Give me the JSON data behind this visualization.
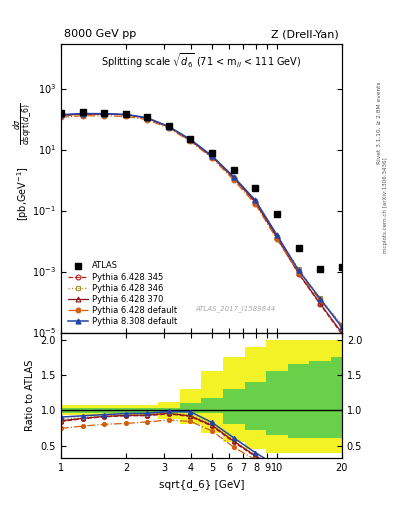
{
  "title_top_left": "8000 GeV pp",
  "title_top_right": "Z (Drell-Yan)",
  "plot_title": "Splitting scale $\\sqrt{d_6}$ (71 < m$_{ll}$ < 111 GeV)",
  "xlabel": "sqrt{d_6} [GeV]",
  "ylabel_ratio": "Ratio to ATLAS",
  "watermark": "ATLAS_2017_I1589844",
  "right_label1": "Rivet 3.1.10, ≥ 2.8M events",
  "right_label2": "mcplots.cern.ch [arXiv:1306.3436]",
  "xmin": 1.0,
  "xmax": 20.0,
  "ymin": 1e-05,
  "ymax": 30000.0,
  "ratio_ymin": 0.32,
  "ratio_ymax": 2.1,
  "atlas_x": [
    1.0,
    1.26,
    1.58,
    2.0,
    2.51,
    3.16,
    3.98,
    5.01,
    6.31,
    7.94,
    10.0,
    12.6,
    15.85,
    19.95
  ],
  "atlas_y": [
    155,
    165,
    160,
    150,
    115,
    58,
    22,
    7.5,
    2.1,
    0.55,
    0.075,
    0.006,
    0.0012,
    0.0014
  ],
  "py6_345_x": [
    1.0,
    1.26,
    1.58,
    2.0,
    2.51,
    3.16,
    3.98,
    5.01,
    6.31,
    7.94,
    10.0,
    12.6,
    15.85,
    19.95
  ],
  "py6_345_y": [
    130,
    145,
    145,
    138,
    106,
    55,
    20,
    5.8,
    1.15,
    0.19,
    0.013,
    0.00085,
    8.5e-05,
    9e-06
  ],
  "py6_346_x": [
    1.0,
    1.26,
    1.58,
    2.0,
    2.51,
    3.16,
    3.98,
    5.01,
    6.31,
    7.94,
    10.0,
    12.6,
    15.85,
    19.95
  ],
  "py6_346_y": [
    135,
    148,
    148,
    140,
    108,
    56,
    20.5,
    6.0,
    1.2,
    0.2,
    0.014,
    0.0012,
    0.000135,
    1.8e-05
  ],
  "py6_370_x": [
    1.0,
    1.26,
    1.58,
    2.0,
    2.51,
    3.16,
    3.98,
    5.01,
    6.31,
    7.94,
    10.0,
    12.6,
    15.85,
    19.95
  ],
  "py6_370_y": [
    132,
    146,
    146,
    139,
    107,
    55.5,
    20.2,
    5.9,
    1.18,
    0.195,
    0.0135,
    0.00088,
    9e-05,
    1e-05
  ],
  "py6_def_x": [
    1.0,
    1.26,
    1.58,
    2.0,
    2.51,
    3.16,
    3.98,
    5.01,
    6.31,
    7.94,
    10.0,
    12.6,
    15.85,
    19.95
  ],
  "py6_def_y": [
    115,
    128,
    128,
    122,
    96,
    50,
    18.5,
    5.3,
    1.0,
    0.165,
    0.0115,
    0.00092,
    0.000115,
    1.8e-05
  ],
  "py8_def_x": [
    1.0,
    1.26,
    1.58,
    2.0,
    2.51,
    3.16,
    3.98,
    5.01,
    6.31,
    7.94,
    10.0,
    12.6,
    15.85,
    19.95
  ],
  "py8_def_y": [
    140,
    152,
    150,
    143,
    110,
    57,
    21.5,
    6.2,
    1.28,
    0.22,
    0.016,
    0.0011,
    0.00013,
    1.5e-05
  ],
  "color_345": "#b52020",
  "color_346": "#a89030",
  "color_370": "#8b1515",
  "color_py6def": "#d06010",
  "color_py8def": "#2244aa",
  "band_x_edges": [
    0.89,
    1.12,
    1.41,
    1.78,
    2.24,
    2.82,
    3.55,
    4.47,
    5.62,
    7.08,
    8.91,
    11.2,
    14.1,
    17.8,
    22.4
  ],
  "green_band_lo": [
    0.965,
    0.965,
    0.965,
    0.965,
    0.965,
    0.965,
    0.965,
    0.965,
    0.8,
    0.72,
    0.65,
    0.6,
    0.6,
    0.6
  ],
  "green_band_hi": [
    1.035,
    1.035,
    1.035,
    1.035,
    1.035,
    1.035,
    1.1,
    1.18,
    1.3,
    1.4,
    1.55,
    1.65,
    1.7,
    1.75
  ],
  "yellow_band_lo": [
    0.93,
    0.93,
    0.93,
    0.93,
    0.93,
    0.88,
    0.8,
    0.68,
    0.55,
    0.45,
    0.4,
    0.4,
    0.4,
    0.4
  ],
  "yellow_band_hi": [
    1.07,
    1.07,
    1.07,
    1.07,
    1.07,
    1.12,
    1.3,
    1.55,
    1.75,
    1.9,
    2.0,
    2.0,
    2.0,
    2.0
  ]
}
